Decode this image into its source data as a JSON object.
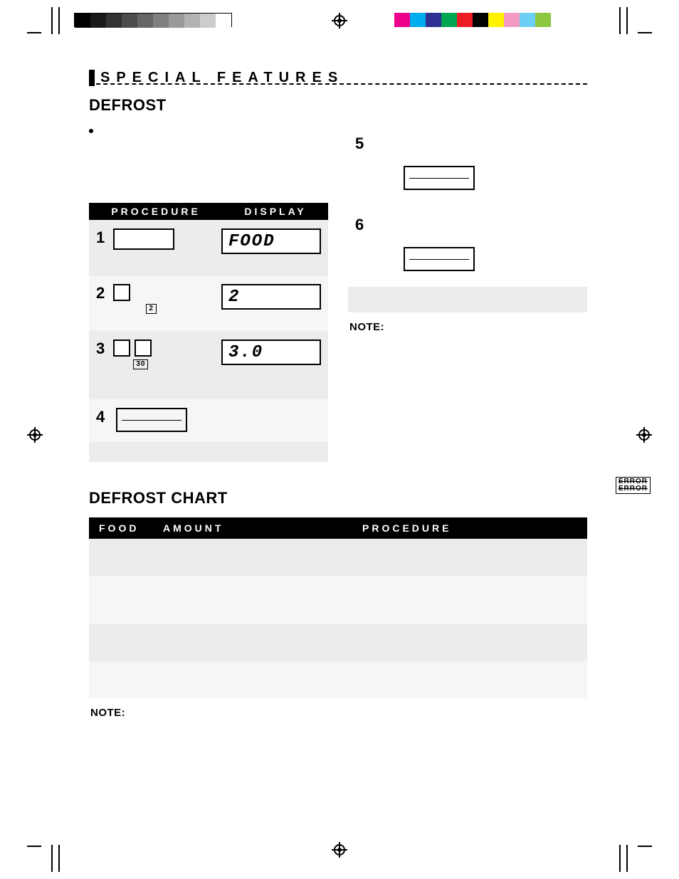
{
  "section_title": "SPECIAL FEATURES",
  "subtitle": "DEFROST",
  "table_headers": {
    "procedure": "PROCEDURE",
    "display": "DISPLAY"
  },
  "steps_left": [
    {
      "num": "1",
      "lcd": "FOOD"
    },
    {
      "num": "2",
      "lcd": "2",
      "tiny": "2"
    },
    {
      "num": "3",
      "lcd": "3.0",
      "tiny": "30"
    },
    {
      "num": "4"
    }
  ],
  "steps_right": [
    {
      "num": "5"
    },
    {
      "num": "6"
    }
  ],
  "note_label": "NOTE:",
  "error_stamp": "ERROR",
  "chart_title": "DEFROST CHART",
  "chart_headers": {
    "food": "FOOD",
    "amount": "AMOUNT",
    "procedure": "PROCEDURE"
  },
  "colorbars": {
    "grayscale": [
      "#000000",
      "#1a1a1a",
      "#333333",
      "#4d4d4d",
      "#666666",
      "#808080",
      "#999999",
      "#b3b3b3",
      "#cccccc",
      "#ffffff"
    ],
    "cmyk": [
      "#ec008c",
      "#00aeef",
      "#2e3192",
      "#00a651",
      "#ed1c24",
      "#000000",
      "#fff200",
      "#f49ac1",
      "#6dcff6",
      "#8dc63f"
    ]
  }
}
